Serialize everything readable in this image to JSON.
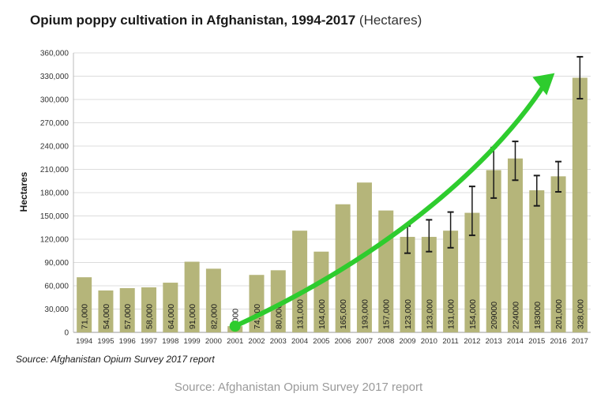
{
  "chart_data": {
    "type": "bar",
    "title": "Opium poppy cultivation in Afghanistan, 1994-2017",
    "title_unit": "(Hectares)",
    "ylabel": "Hectares",
    "ylim": [
      0,
      360000
    ],
    "yticks": [
      0,
      30000,
      60000,
      90000,
      120000,
      150000,
      180000,
      210000,
      240000,
      270000,
      300000,
      330000,
      360000
    ],
    "ytick_labels": [
      "0",
      "30,000",
      "60,000",
      "90,000",
      "120,000",
      "150,000",
      "180,000",
      "210,000",
      "240,000",
      "270,000",
      "300,000",
      "330,000",
      "360,000"
    ],
    "grid": true,
    "categories": [
      "1994",
      "1995",
      "1996",
      "1997",
      "1998",
      "1999",
      "2000",
      "2001",
      "2002",
      "2003",
      "2004",
      "2005",
      "2006",
      "2007",
      "2008",
      "2009",
      "2010",
      "2011",
      "2012",
      "2013",
      "2014",
      "2015",
      "2016",
      "2017"
    ],
    "values": [
      71000,
      54000,
      57000,
      58000,
      64000,
      91000,
      82000,
      8000,
      74000,
      80000,
      131000,
      104000,
      165000,
      193000,
      157000,
      123000,
      123000,
      131000,
      154000,
      209000,
      224000,
      183000,
      201000,
      328000
    ],
    "data_labels": [
      "71,000",
      "54,000",
      "57,000",
      "58,000",
      "64,000",
      "91,000",
      "82,000",
      "8,000",
      "74,000",
      "80,000",
      "131,000",
      "104,000",
      "165,000",
      "193,000",
      "157,000",
      "123,000",
      "123,000",
      "131,000",
      "154,000",
      "209000",
      "224000",
      "183000",
      "201,000",
      "328,000"
    ],
    "error_bars": {
      "2009": [
        102000,
        137000
      ],
      "2010": [
        104000,
        145000
      ],
      "2011": [
        109000,
        155000
      ],
      "2012": [
        125000,
        188000
      ],
      "2013": [
        173000,
        238000
      ],
      "2014": [
        196000,
        246000
      ],
      "2015": [
        163000,
        202000
      ],
      "2016": [
        181000,
        220000
      ],
      "2017": [
        301000,
        355000
      ]
    },
    "annotation": {
      "type": "trend-arrow",
      "color": "#2ecc2e",
      "from": [
        "2001",
        8000
      ],
      "to": [
        "2017",
        340000
      ]
    },
    "bar_color": "#b5b57a",
    "source": "Source: Afghanistan Opium Survey 2017 report"
  },
  "caption": "Source: Afghanistan Opium Survey 2017 report"
}
